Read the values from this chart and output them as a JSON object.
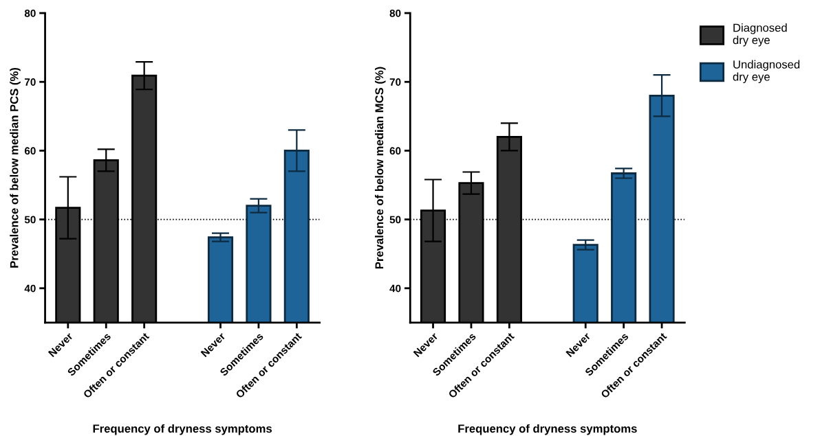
{
  "chart_data": [
    {
      "type": "bar",
      "ylabel": "Prevalence of below median PCS (%)",
      "xlabel": "Frequency of dryness symptoms",
      "categories": [
        "Never",
        "Sometimes",
        "Often or constant",
        null,
        "Never",
        "Sometimes",
        "Often or constant"
      ],
      "series": [
        {
          "color": "#333333",
          "values": [
            51.7,
            58.6,
            70.9,
            null,
            null,
            null,
            null
          ],
          "errors": [
            4.5,
            1.6,
            2.0,
            null,
            null,
            null,
            null
          ]
        },
        {
          "color": "#1f6499",
          "values": [
            null,
            null,
            null,
            null,
            47.4,
            52.0,
            60.0
          ],
          "errors": [
            null,
            null,
            null,
            null,
            0.6,
            1.0,
            3.0
          ]
        }
      ],
      "ylim": [
        35,
        80
      ],
      "yticks": [
        40,
        50,
        60,
        70,
        80
      ],
      "ref_lines": [
        {
          "axis": "y",
          "value": 50,
          "line_style": "dotted",
          "color": "#000000"
        }
      ],
      "grid": false,
      "legend": false
    },
    {
      "type": "bar",
      "ylabel": "Prevalence of below median MCS (%)",
      "xlabel": "Frequency of dryness symptoms",
      "categories": [
        "Never",
        "Sometimes",
        "Often or constant",
        null,
        "Never",
        "Sometimes",
        "Often or constant"
      ],
      "series": [
        {
          "name": "Diagnosed\ndry eye",
          "color": "#333333",
          "values": [
            51.3,
            55.3,
            62.0,
            null,
            null,
            null,
            null
          ],
          "errors": [
            4.5,
            1.6,
            2.0,
            null,
            null,
            null,
            null
          ]
        },
        {
          "name": "Undiagnosed\ndry eye",
          "color": "#1f6499",
          "values": [
            null,
            null,
            null,
            null,
            46.3,
            56.7,
            68.0
          ],
          "errors": [
            null,
            null,
            null,
            null,
            0.7,
            0.7,
            3.0
          ]
        }
      ],
      "ylim": [
        35,
        80
      ],
      "yticks": [
        40,
        50,
        60,
        70,
        80
      ],
      "ref_lines": [
        {
          "axis": "y",
          "value": 50,
          "line_style": "dotted",
          "color": "#000000"
        }
      ],
      "grid": false,
      "legend": "top right"
    }
  ]
}
